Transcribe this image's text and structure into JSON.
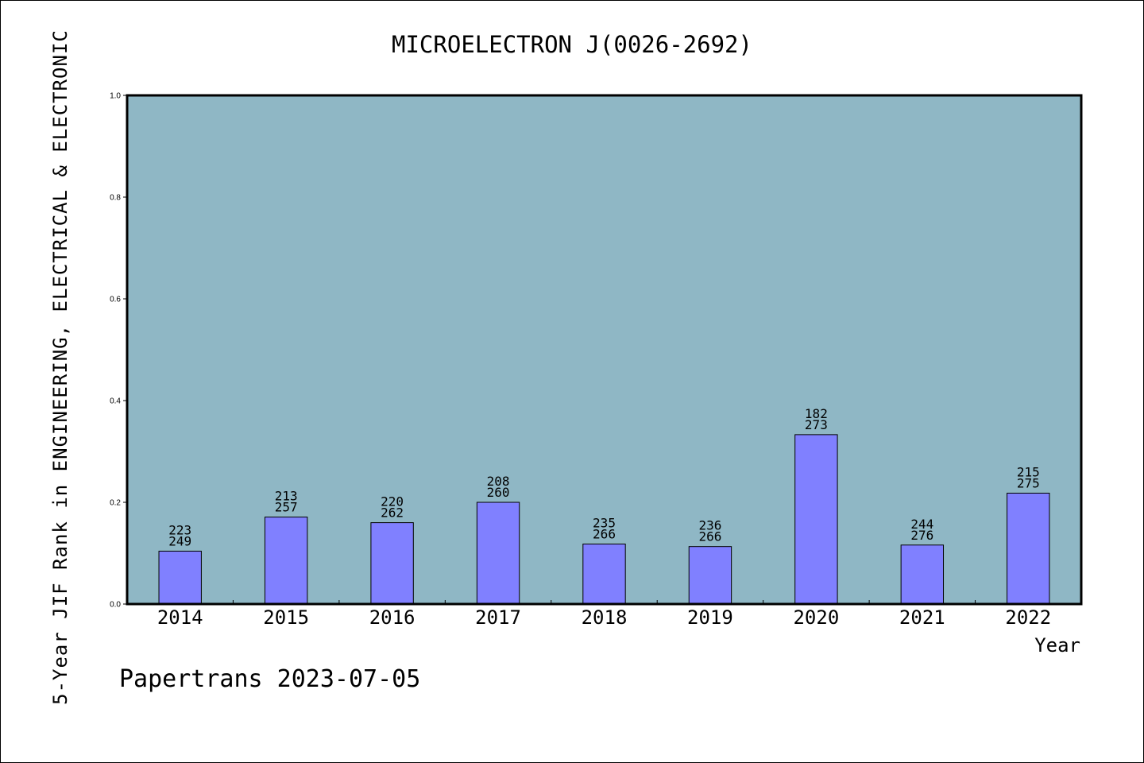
{
  "colors": {
    "plot_background": "#8fb7c5",
    "bar_fill": "#8080ff",
    "bar_stroke": "#000000",
    "frame": "#000000"
  },
  "footer": {
    "text": "Papertrans 2023-07-05"
  },
  "chart_data": {
    "type": "bar",
    "title": "MICROELECTRON J(0026-2692)",
    "xlabel": "Year",
    "ylabel": "5-Year JIF Rank in ENGINEERING, ELECTRICAL & ELECTRONIC",
    "ylim": [
      0,
      1.0
    ],
    "yticks": [
      "0.0",
      "0.2",
      "0.4",
      "0.6",
      "0.8",
      "1.0"
    ],
    "grid": false,
    "categories": [
      "2014",
      "2015",
      "2016",
      "2017",
      "2018",
      "2019",
      "2020",
      "2021",
      "2022"
    ],
    "values": [
      0.104,
      0.171,
      0.16,
      0.2,
      0.118,
      0.113,
      0.333,
      0.116,
      0.218
    ],
    "rank_labels": [
      "223",
      "213",
      "220",
      "208",
      "235",
      "236",
      "182",
      "244",
      "215"
    ],
    "total_labels": [
      "249",
      "257",
      "262",
      "260",
      "266",
      "266",
      "273",
      "276",
      "275"
    ]
  }
}
